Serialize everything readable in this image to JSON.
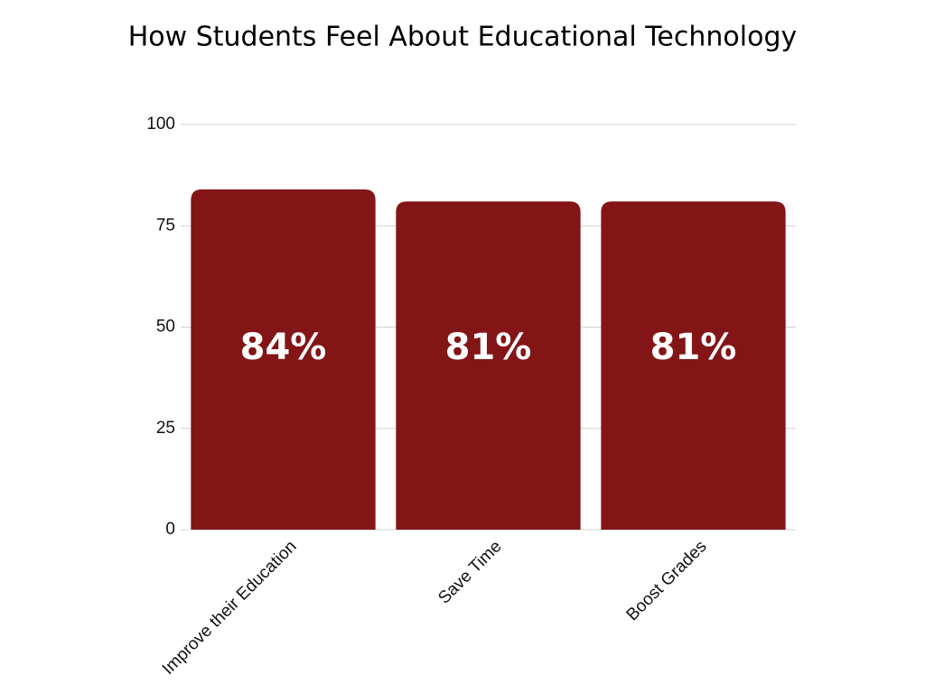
{
  "chart_data": {
    "type": "bar",
    "title": "How Students Feel About Educational Technology",
    "categories": [
      "Improve their Education",
      "Save Time",
      "Boost Grades"
    ],
    "values": [
      84,
      81,
      81
    ],
    "value_labels": [
      "84%",
      "81%",
      "81%"
    ],
    "color": "#831517",
    "ylim": [
      0,
      100
    ],
    "yticks": [
      0,
      25,
      50,
      75,
      100
    ],
    "grid": true
  }
}
